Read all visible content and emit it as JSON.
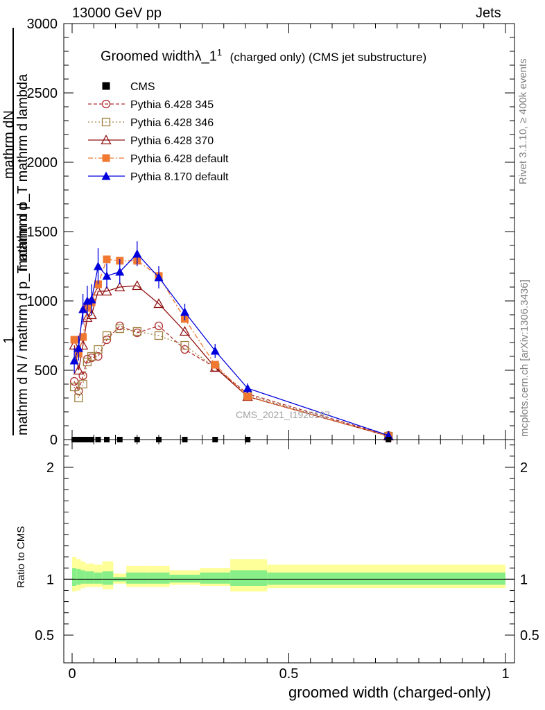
{
  "header": {
    "left": "13000 GeV pp",
    "right": "Jets"
  },
  "side_labels": {
    "rivet": "Rivet 3.1.10, ≥ 400k events",
    "mcplots": "mcplots.cern.ch [arXiv:1306.3436]"
  },
  "watermark": "CMS_2021_I1920187",
  "chart_data": {
    "type": "line",
    "title_main": "Groomed width",
    "title_lambda": "λ_1",
    "title_sup": "1",
    "title_rest": "(charged only) (CMS jet substructure)",
    "ylabel_top": "mathrm dN",
    "ylabel_top_denom": "mathrm d p_T mathrm d lambda",
    "ylabel_frac_num": "1",
    "ylabel_frac_den": "mathrm d N / mathrm d p_T mathrm d",
    "ratio_ylabel": "Ratio to CMS",
    "xlabel": "groomed width (charged-only)",
    "xlim": [
      -0.02,
      1.0
    ],
    "ylim": [
      0,
      3000
    ],
    "ratio_ylim": [
      0.4,
      2.3
    ],
    "x_ticks": [
      "0",
      "0.5",
      "1"
    ],
    "x_tick_values": [
      0,
      0.5,
      1
    ],
    "y_ticks": [
      "0",
      "500",
      "1000",
      "1500",
      "2000",
      "2500",
      "3000"
    ],
    "y_tick_values": [
      0,
      500,
      1000,
      1500,
      2000,
      2500,
      3000
    ],
    "ratio_ticks": [
      "0.5",
      "1",
      "2"
    ],
    "ratio_tick_values": [
      0.5,
      1,
      2
    ],
    "cms": {
      "name": "CMS",
      "x": [
        0.005,
        0.015,
        0.025,
        0.035,
        0.045,
        0.06,
        0.08,
        0.11,
        0.15,
        0.2,
        0.26,
        0.33,
        0.405,
        0.73
      ],
      "values": [
        0,
        0,
        0,
        0,
        0,
        0,
        0,
        0,
        0,
        0,
        0,
        0,
        0,
        0
      ],
      "ratio_bands": [
        {
          "x0": 0.0,
          "x1": 0.01,
          "in_lo": 0.94,
          "in_hi": 1.1,
          "out_lo": 0.89,
          "out_hi": 1.2
        },
        {
          "x0": 0.01,
          "x1": 0.02,
          "in_lo": 0.95,
          "in_hi": 1.09,
          "out_lo": 0.9,
          "out_hi": 1.18
        },
        {
          "x0": 0.02,
          "x1": 0.03,
          "in_lo": 0.96,
          "in_hi": 1.08,
          "out_lo": 0.92,
          "out_hi": 1.16
        },
        {
          "x0": 0.03,
          "x1": 0.05,
          "in_lo": 0.96,
          "in_hi": 1.07,
          "out_lo": 0.93,
          "out_hi": 1.14
        },
        {
          "x0": 0.05,
          "x1": 0.07,
          "in_lo": 0.96,
          "in_hi": 1.06,
          "out_lo": 0.93,
          "out_hi": 1.13
        },
        {
          "x0": 0.07,
          "x1": 0.095,
          "in_lo": 0.95,
          "in_hi": 1.07,
          "out_lo": 0.91,
          "out_hi": 1.16
        },
        {
          "x0": 0.095,
          "x1": 0.125,
          "in_lo": 0.98,
          "in_hi": 1.02,
          "out_lo": 0.96,
          "out_hi": 1.05
        },
        {
          "x0": 0.125,
          "x1": 0.175,
          "in_lo": 0.96,
          "in_hi": 1.06,
          "out_lo": 0.93,
          "out_hi": 1.12
        },
        {
          "x0": 0.175,
          "x1": 0.225,
          "in_lo": 0.96,
          "in_hi": 1.06,
          "out_lo": 0.93,
          "out_hi": 1.12
        },
        {
          "x0": 0.225,
          "x1": 0.295,
          "in_lo": 0.97,
          "in_hi": 1.04,
          "out_lo": 0.95,
          "out_hi": 1.08
        },
        {
          "x0": 0.295,
          "x1": 0.365,
          "in_lo": 0.96,
          "in_hi": 1.06,
          "out_lo": 0.94,
          "out_hi": 1.1
        },
        {
          "x0": 0.365,
          "x1": 0.45,
          "in_lo": 0.94,
          "in_hi": 1.08,
          "out_lo": 0.89,
          "out_hi": 1.18
        },
        {
          "x0": 0.45,
          "x1": 1.0,
          "in_lo": 0.95,
          "in_hi": 1.06,
          "out_lo": 0.92,
          "out_hi": 1.13
        }
      ]
    },
    "series": [
      {
        "name": "Pythia 6.428 345",
        "color": "#b03030",
        "marker": "circle-open",
        "dash": "5,3",
        "x": [
          0.005,
          0.015,
          0.025,
          0.035,
          0.045,
          0.06,
          0.08,
          0.11,
          0.15,
          0.2,
          0.26,
          0.33,
          0.405,
          0.73
        ],
        "values": [
          420,
          350,
          460,
          580,
          590,
          600,
          720,
          820,
          770,
          820,
          650,
          520,
          330,
          30
        ]
      },
      {
        "name": "Pythia 6.428 346",
        "color": "#a08040",
        "marker": "square-open",
        "dash": "2,3",
        "x": [
          0.005,
          0.015,
          0.025,
          0.035,
          0.045,
          0.06,
          0.08,
          0.11,
          0.15,
          0.2,
          0.26,
          0.33,
          0.405,
          0.73
        ],
        "values": [
          380,
          300,
          400,
          560,
          600,
          650,
          750,
          800,
          780,
          750,
          680,
          520,
          320,
          25
        ]
      },
      {
        "name": "Pythia 6.428 370",
        "color": "#901010",
        "marker": "triangle-open",
        "dash": "",
        "x": [
          0.005,
          0.015,
          0.025,
          0.035,
          0.045,
          0.06,
          0.08,
          0.11,
          0.15,
          0.2,
          0.26,
          0.33,
          0.405,
          0.73
        ],
        "values": [
          680,
          500,
          680,
          880,
          900,
          1070,
          1070,
          1100,
          1110,
          980,
          780,
          520,
          310,
          25
        ]
      },
      {
        "name": "Pythia 6.428 default",
        "color": "#f07830",
        "marker": "square",
        "dash": "7,3,2,3",
        "x": [
          0.005,
          0.015,
          0.025,
          0.035,
          0.045,
          0.06,
          0.08,
          0.11,
          0.15,
          0.2,
          0.26,
          0.33,
          0.405,
          0.73
        ],
        "values": [
          720,
          620,
          740,
          950,
          990,
          1120,
          1300,
          1290,
          1290,
          1180,
          870,
          540,
          310,
          25
        ]
      },
      {
        "name": "Pythia 8.170 default",
        "color": "#0000dd",
        "marker": "triangle",
        "dash": "",
        "x": [
          0.005,
          0.015,
          0.025,
          0.035,
          0.045,
          0.06,
          0.08,
          0.11,
          0.15,
          0.2,
          0.26,
          0.33,
          0.405,
          0.73
        ],
        "values": [
          570,
          660,
          940,
          1000,
          1010,
          1250,
          1180,
          1210,
          1340,
          1170,
          920,
          640,
          370,
          30
        ],
        "errors": [
          90,
          90,
          110,
          110,
          110,
          130,
          90,
          90,
          90,
          80,
          60,
          50,
          35,
          10
        ]
      }
    ],
    "grid": false,
    "legend_position": "top-left"
  }
}
